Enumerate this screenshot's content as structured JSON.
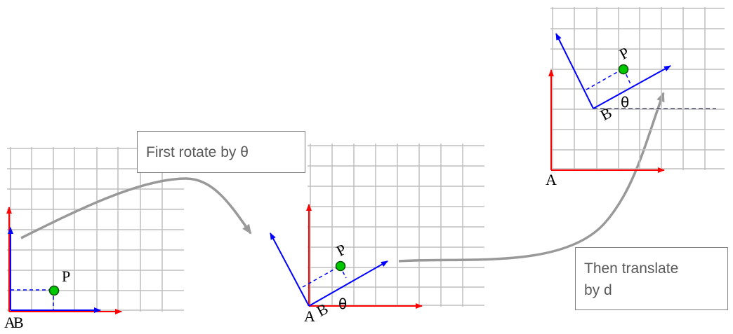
{
  "callouts": {
    "rotate": "First rotate by θ",
    "translate_line1": "Then translate",
    "translate_line2": "by d"
  },
  "labels": {
    "point": "P",
    "frame_a": "A",
    "frame_b": "B",
    "angle": "θ"
  },
  "colors": {
    "grid": "#bfbfbf",
    "axis_a": "#ff0000",
    "axis_b": "#0000ff",
    "point_fill": "#00c800",
    "arrow": "#999999"
  }
}
